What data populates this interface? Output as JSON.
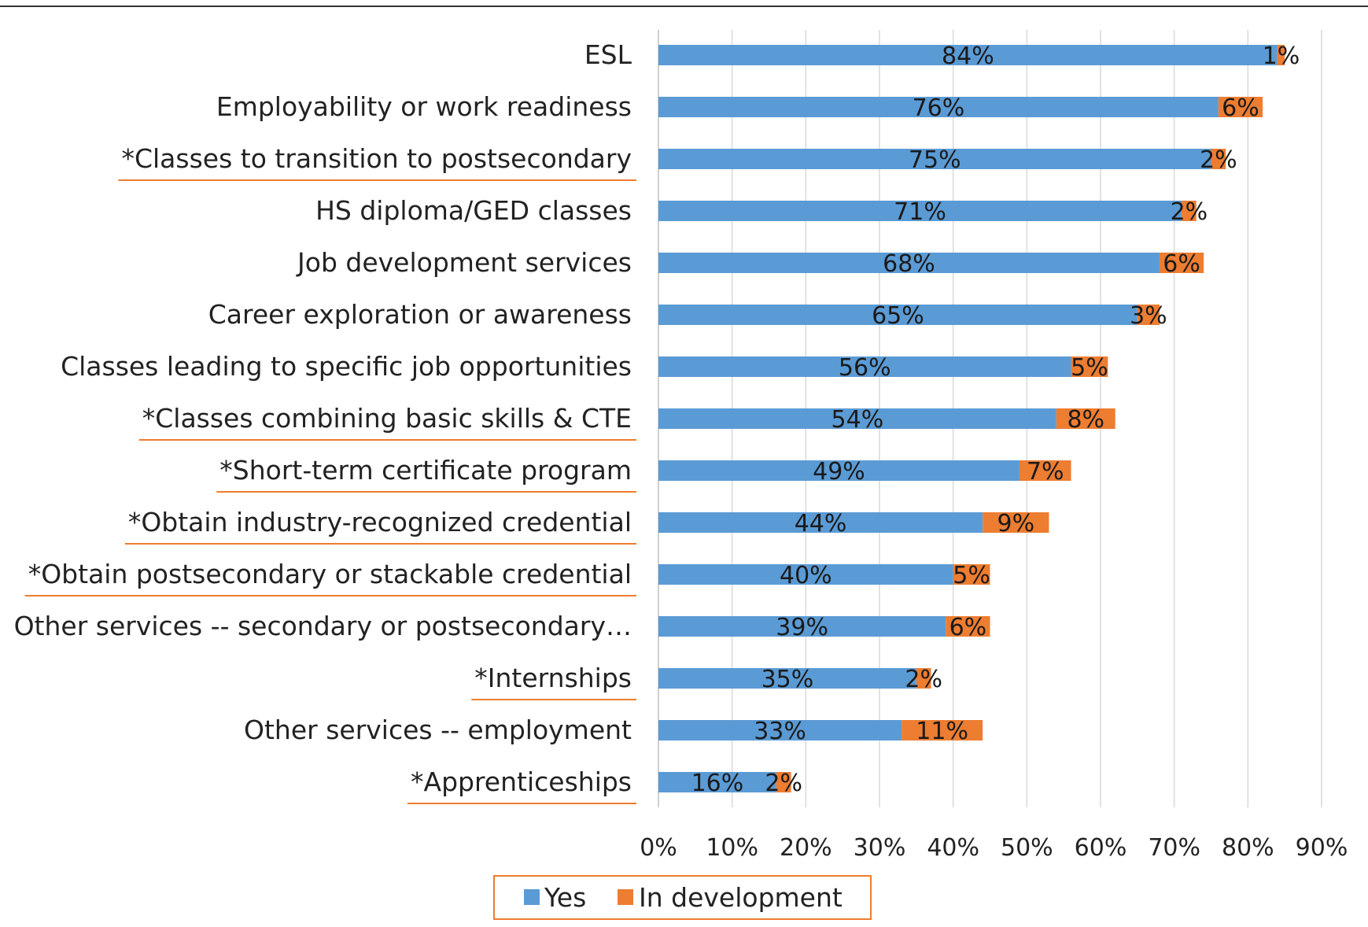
{
  "chart_data": {
    "type": "bar",
    "orientation": "horizontal",
    "stacked": true,
    "categories": [
      "ESL",
      "Employability or work readiness",
      "*Classes to transition to postsecondary",
      "HS diploma/GED  classes",
      "Job development services",
      "Career exploration or awareness",
      "Classes leading to specific job opportunities",
      "*Classes combining basic skills & CTE",
      "*Short-term certificate program",
      "*Obtain industry-recognized credential",
      "*Obtain postsecondary or stackable credential",
      "Other services -- secondary or postsecondary…",
      "*Internships",
      "Other services -- employment",
      "*Apprenticeships"
    ],
    "underlined_categories": [
      "*Classes to transition to postsecondary",
      "*Classes combining basic skills & CTE",
      "*Short-term certificate program",
      "*Obtain industry-recognized credential",
      "*Obtain postsecondary or stackable credential",
      "*Internships",
      "*Apprenticeships"
    ],
    "series": [
      {
        "name": "Yes",
        "color": "#5b9bd5",
        "values": [
          84,
          76,
          75,
          71,
          68,
          65,
          56,
          54,
          49,
          44,
          40,
          39,
          35,
          33,
          16
        ],
        "labels": [
          "84%",
          "76%",
          "75%",
          "71%",
          "68%",
          "65%",
          "56%",
          "54%",
          "49%",
          "44%",
          "40%",
          "39%",
          "35%",
          "33%",
          "16%"
        ]
      },
      {
        "name": "In development",
        "color": "#ed7d31",
        "values": [
          1,
          6,
          2,
          2,
          6,
          3,
          5,
          8,
          7,
          9,
          5,
          6,
          2,
          11,
          2
        ],
        "labels": [
          "1%",
          "6%",
          "2%",
          "2%",
          "6%",
          "3%",
          "5%",
          "8%",
          "7%",
          "9%",
          "5%",
          "6%",
          "2%",
          "11%",
          "2%"
        ]
      }
    ],
    "xlim": [
      0,
      90
    ],
    "x_ticks": [
      "0%",
      "10%",
      "20%",
      "30%",
      "40%",
      "50%",
      "60%",
      "70%",
      "80%",
      "90%"
    ],
    "grid": true,
    "legend_position": "bottom-center",
    "underline_color": "#ed7d31",
    "legend_border_color": "#ed7d31"
  }
}
